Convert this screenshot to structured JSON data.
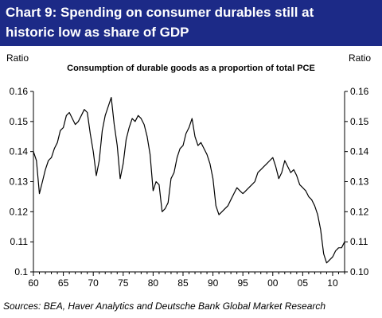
{
  "header": {
    "title_line1": "Chart 9:  Spending on consumer durables still at",
    "title_line2": "historic low as share of GDP"
  },
  "footer": {
    "sources": "Sources: BEA, Haver Analytics and Deutsche Bank Global Market Research"
  },
  "chart_data": {
    "type": "line",
    "title": "Consumption of durable goods as a proportion of total PCE",
    "ylabel_left": "Ratio",
    "ylabel_right": "Ratio",
    "xlim": [
      1960,
      2012
    ],
    "ylim": [
      0.1,
      0.16
    ],
    "yticks": [
      0.1,
      0.11,
      0.12,
      0.13,
      0.14,
      0.15,
      0.16
    ],
    "ytick_labels": [
      "0.1",
      "0.11",
      "0.12",
      "0.13",
      "0.14",
      "0.15",
      "0.16"
    ],
    "ytick_labels_right": [
      "0.10",
      "0.11",
      "0.12",
      "0.13",
      "0.14",
      "0.15",
      "0.16"
    ],
    "xticks": [
      1960,
      1965,
      1970,
      1975,
      1980,
      1985,
      1990,
      1995,
      2000,
      2005,
      2010
    ],
    "xtick_labels": [
      "60",
      "65",
      "70",
      "75",
      "80",
      "85",
      "90",
      "95",
      "00",
      "05",
      "10"
    ],
    "grid": false,
    "line_color": "#000000",
    "series": [
      {
        "x": [
          1960.0,
          1960.5,
          1961.0,
          1961.5,
          1962.0,
          1962.5,
          1963.0,
          1963.5,
          1964.0,
          1964.5,
          1965.0,
          1965.5,
          1966.0,
          1966.5,
          1967.0,
          1967.5,
          1968.0,
          1968.5,
          1969.0,
          1969.5,
          1970.0,
          1970.5,
          1971.0,
          1971.5,
          1972.0,
          1972.5,
          1973.0,
          1973.5,
          1974.0,
          1974.5,
          1975.0,
          1975.5,
          1976.0,
          1976.5,
          1977.0,
          1977.5,
          1978.0,
          1978.5,
          1979.0,
          1979.5,
          1980.0,
          1980.5,
          1981.0,
          1981.5,
          1982.0,
          1982.5,
          1983.0,
          1983.5,
          1984.0,
          1984.5,
          1985.0,
          1985.5,
          1986.0,
          1986.5,
          1987.0,
          1987.5,
          1988.0,
          1988.5,
          1989.0,
          1989.5,
          1990.0,
          1990.5,
          1991.0,
          1991.5,
          1992.0,
          1992.5,
          1993.0,
          1993.5,
          1994.0,
          1994.5,
          1995.0,
          1995.5,
          1996.0,
          1996.5,
          1997.0,
          1997.5,
          1998.0,
          1998.5,
          1999.0,
          1999.5,
          2000.0,
          2000.5,
          2001.0,
          2001.5,
          2002.0,
          2002.5,
          2003.0,
          2003.5,
          2004.0,
          2004.5,
          2005.0,
          2005.5,
          2006.0,
          2006.5,
          2007.0,
          2007.5,
          2008.0,
          2008.5,
          2009.0,
          2009.5,
          2010.0,
          2010.5,
          2011.0,
          2011.5,
          2012.0
        ],
        "y": [
          0.14,
          0.137,
          0.126,
          0.13,
          0.134,
          0.137,
          0.138,
          0.141,
          0.143,
          0.147,
          0.148,
          0.152,
          0.153,
          0.151,
          0.149,
          0.15,
          0.152,
          0.154,
          0.153,
          0.146,
          0.14,
          0.132,
          0.137,
          0.147,
          0.152,
          0.155,
          0.158,
          0.149,
          0.142,
          0.131,
          0.136,
          0.144,
          0.148,
          0.151,
          0.15,
          0.152,
          0.151,
          0.149,
          0.145,
          0.139,
          0.127,
          0.13,
          0.129,
          0.12,
          0.121,
          0.123,
          0.131,
          0.133,
          0.138,
          0.141,
          0.142,
          0.146,
          0.148,
          0.151,
          0.145,
          0.142,
          0.143,
          0.141,
          0.139,
          0.136,
          0.131,
          0.122,
          0.119,
          0.12,
          0.121,
          0.122,
          0.124,
          0.126,
          0.128,
          0.127,
          0.126,
          0.127,
          0.128,
          0.129,
          0.13,
          0.133,
          0.134,
          0.135,
          0.136,
          0.137,
          0.138,
          0.135,
          0.131,
          0.133,
          0.137,
          0.135,
          0.133,
          0.134,
          0.132,
          0.129,
          0.128,
          0.127,
          0.125,
          0.124,
          0.122,
          0.119,
          0.114,
          0.106,
          0.103,
          0.104,
          0.105,
          0.107,
          0.108,
          0.108,
          0.11
        ]
      }
    ]
  }
}
